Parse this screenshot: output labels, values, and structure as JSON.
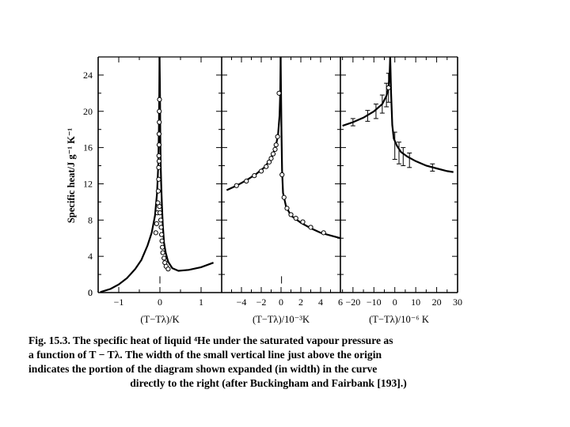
{
  "figure": {
    "y_axis_label": "Specific heat/J g⁻¹ K⁻¹",
    "caption_lines": [
      "Fig. 15.3. The specific heat of liquid ⁴He under the saturated vapour pressure as",
      "a function of T − Tλ. The width of the small vertical line just above the origin",
      "indicates the portion of the diagram shown expanded (in width) in the curve",
      "directly to the right (after Buckingham and Fairbank [193].)"
    ]
  },
  "chart_data": [
    {
      "type": "scatter",
      "xlabel": "(T−Tλ)/K",
      "ylabel": "Specific heat/J g⁻¹ K⁻¹",
      "xlim": [
        -1.5,
        1.5
      ],
      "ylim": [
        0,
        26
      ],
      "x_ticks": [
        -1,
        0,
        1
      ],
      "y_ticks": [
        0,
        4,
        8,
        12,
        16,
        20,
        24
      ],
      "curve_below": [
        [
          -1.45,
          0.05
        ],
        [
          -1.2,
          0.4
        ],
        [
          -1.0,
          0.9
        ],
        [
          -0.8,
          1.6
        ],
        [
          -0.6,
          2.6
        ],
        [
          -0.45,
          3.6
        ],
        [
          -0.3,
          5.2
        ],
        [
          -0.2,
          6.6
        ],
        [
          -0.12,
          8.5
        ],
        [
          -0.07,
          11
        ],
        [
          -0.04,
          14
        ],
        [
          -0.025,
          18
        ],
        [
          -0.015,
          22
        ],
        [
          -0.01,
          26
        ]
      ],
      "curve_above": [
        [
          -0.01,
          26
        ],
        [
          0.0,
          23
        ],
        [
          0.005,
          20
        ],
        [
          0.01,
          17
        ],
        [
          0.02,
          14
        ],
        [
          0.03,
          12
        ],
        [
          0.05,
          9.5
        ],
        [
          0.07,
          7.5
        ],
        [
          0.1,
          5.5
        ],
        [
          0.14,
          4.4
        ],
        [
          0.2,
          3.4
        ],
        [
          0.3,
          2.7
        ],
        [
          0.45,
          2.4
        ],
        [
          0.7,
          2.5
        ],
        [
          1.0,
          2.8
        ],
        [
          1.3,
          3.3
        ]
      ],
      "points": [
        [
          -0.1,
          6.6
        ],
        [
          -0.08,
          7.6
        ],
        [
          -0.06,
          8.8
        ],
        [
          -0.05,
          9.9
        ],
        [
          -0.04,
          11.2
        ],
        [
          -0.03,
          12.5
        ],
        [
          -0.03,
          13.8
        ],
        [
          -0.025,
          15.1
        ],
        [
          -0.02,
          16.3
        ],
        [
          -0.02,
          17.5
        ],
        [
          -0.015,
          18.8
        ],
        [
          -0.015,
          20.0
        ],
        [
          -0.01,
          21.3
        ],
        [
          -0.02,
          14.5
        ],
        [
          -0.01,
          9.5
        ],
        [
          0.0,
          8.8
        ],
        [
          0.02,
          8.0
        ],
        [
          0.03,
          7.2
        ],
        [
          0.04,
          6.4
        ],
        [
          0.05,
          5.7
        ],
        [
          0.06,
          5.0
        ],
        [
          0.07,
          4.4
        ],
        [
          0.1,
          3.8
        ],
        [
          0.12,
          3.3
        ],
        [
          0.15,
          2.9
        ],
        [
          0.2,
          2.6
        ]
      ],
      "marker": {
        "x": 0,
        "y_range": [
          1.0,
          1.8
        ]
      }
    },
    {
      "type": "scatter",
      "xlabel": "(T−Tλ)/10⁻³K",
      "xlim": [
        -6,
        6
      ],
      "ylim": [
        0,
        26
      ],
      "x_ticks": [
        -4,
        -2,
        0,
        2,
        4,
        6
      ],
      "x_tick_labels": [
        "−4",
        "−2",
        "0",
        "2",
        "4",
        "6"
      ],
      "curve_below": [
        [
          -5.5,
          11.3
        ],
        [
          -4.5,
          11.8
        ],
        [
          -3.5,
          12.4
        ],
        [
          -2.5,
          13.1
        ],
        [
          -1.7,
          13.8
        ],
        [
          -1.2,
          14.5
        ],
        [
          -0.8,
          15.3
        ],
        [
          -0.5,
          16.3
        ],
        [
          -0.3,
          17.5
        ],
        [
          -0.15,
          19.5
        ],
        [
          -0.08,
          22
        ],
        [
          -0.04,
          26
        ]
      ],
      "curve_above": [
        [
          -0.04,
          26
        ],
        [
          0.0,
          22
        ],
        [
          0.04,
          18
        ],
        [
          0.1,
          13.5
        ],
        [
          0.2,
          11
        ],
        [
          0.5,
          9.5
        ],
        [
          1.0,
          8.5
        ],
        [
          2.0,
          7.7
        ],
        [
          3.0,
          7.1
        ],
        [
          4.0,
          6.6
        ],
        [
          5.0,
          6.3
        ],
        [
          6.0,
          6.0
        ]
      ],
      "points": [
        [
          -4.5,
          11.8
        ],
        [
          -3.5,
          12.3
        ],
        [
          -2.7,
          12.9
        ],
        [
          -2.0,
          13.4
        ],
        [
          -1.5,
          13.9
        ],
        [
          -1.2,
          14.4
        ],
        [
          -1.0,
          14.8
        ],
        [
          -0.8,
          15.3
        ],
        [
          -0.6,
          15.8
        ],
        [
          -0.5,
          16.3
        ],
        [
          -0.35,
          17.2
        ],
        [
          -0.2,
          22.0
        ],
        [
          0.1,
          13.0
        ],
        [
          0.3,
          10.5
        ],
        [
          0.6,
          9.3
        ],
        [
          1.0,
          8.6
        ],
        [
          1.5,
          8.2
        ],
        [
          2.2,
          7.8
        ],
        [
          3.0,
          7.2
        ],
        [
          4.3,
          6.6
        ]
      ],
      "marker": {
        "x": 0.05,
        "y_range": [
          1.0,
          1.8
        ]
      }
    },
    {
      "type": "scatter",
      "xlabel": "(T−Tλ)/10⁻⁶ K",
      "xlim": [
        -26,
        30
      ],
      "ylim": [
        0,
        26
      ],
      "x_ticks": [
        -20,
        -10,
        0,
        10,
        20,
        30
      ],
      "x_tick_labels": [
        "−20",
        "−10",
        "0",
        "10",
        "20",
        "30"
      ],
      "curve_below": [
        [
          -25,
          18.4
        ],
        [
          -20,
          18.8
        ],
        [
          -15,
          19.3
        ],
        [
          -10,
          20.0
        ],
        [
          -6,
          20.8
        ],
        [
          -4,
          21.7
        ],
        [
          -3,
          22.6
        ],
        [
          -2.5,
          24
        ],
        [
          -2.2,
          26
        ]
      ],
      "curve_above": [
        [
          -2.2,
          26
        ],
        [
          -1.8,
          22
        ],
        [
          -1.2,
          18.5
        ],
        [
          -0.5,
          17
        ],
        [
          1,
          16.2
        ],
        [
          3,
          15.5
        ],
        [
          6,
          15.0
        ],
        [
          10,
          14.5
        ],
        [
          15,
          14.0
        ],
        [
          20,
          13.7
        ],
        [
          25,
          13.4
        ],
        [
          28,
          13.3
        ]
      ],
      "points": [
        [
          -20,
          18.8
        ],
        [
          -13,
          19.5
        ],
        [
          -9,
          20.0
        ],
        [
          -6,
          20.8
        ],
        [
          -4,
          21.8
        ],
        [
          -3,
          22.6
        ],
        [
          0,
          16.2
        ],
        [
          2,
          15.4
        ],
        [
          4,
          15.0
        ],
        [
          7,
          14.6
        ],
        [
          18,
          13.8
        ]
      ],
      "error_bars": [
        [
          -20,
          18.8,
          0.4
        ],
        [
          -13,
          19.5,
          0.6
        ],
        [
          -9,
          20.0,
          0.8
        ],
        [
          -6,
          20.8,
          1.0
        ],
        [
          -4,
          21.8,
          1.3
        ],
        [
          -3,
          22.6,
          1.6
        ],
        [
          0,
          16.2,
          1.5
        ],
        [
          2,
          15.4,
          1.2
        ],
        [
          4,
          15.0,
          1.0
        ],
        [
          7,
          14.6,
          0.8
        ],
        [
          18,
          13.8,
          0.4
        ]
      ],
      "open_points": [
        [
          -3,
          22.6
        ]
      ]
    }
  ]
}
